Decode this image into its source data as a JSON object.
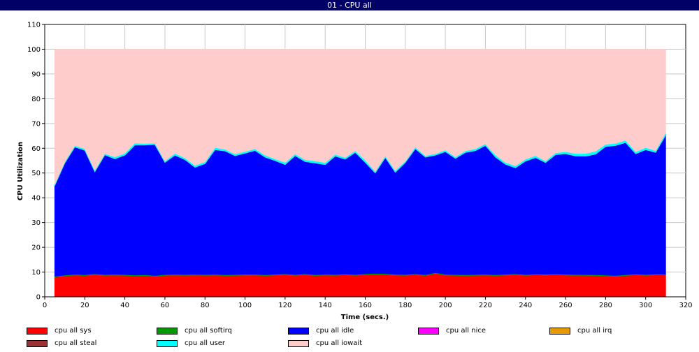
{
  "window": {
    "title": "01 - CPU all"
  },
  "chart_data": {
    "type": "area",
    "stacked": true,
    "title": "",
    "xlabel": "Time (secs.)",
    "ylabel": "CPU Utilization",
    "xlim": [
      0,
      320
    ],
    "ylim": [
      0,
      110
    ],
    "xticks": [
      0,
      20,
      40,
      60,
      80,
      100,
      120,
      140,
      160,
      180,
      200,
      220,
      240,
      260,
      280,
      300,
      320
    ],
    "yticks": [
      0,
      10,
      20,
      30,
      40,
      50,
      60,
      70,
      80,
      90,
      100,
      110
    ],
    "grid": true,
    "legend_position": "bottom",
    "x": [
      5,
      10,
      15,
      20,
      25,
      30,
      35,
      40,
      45,
      50,
      55,
      60,
      65,
      70,
      75,
      80,
      85,
      90,
      95,
      100,
      105,
      110,
      115,
      120,
      125,
      130,
      135,
      140,
      145,
      150,
      155,
      160,
      165,
      170,
      175,
      180,
      185,
      190,
      195,
      200,
      205,
      210,
      215,
      220,
      225,
      230,
      235,
      240,
      245,
      250,
      255,
      260,
      265,
      270,
      275,
      280,
      285,
      290,
      295,
      300,
      305,
      310
    ],
    "series": [
      {
        "name": "cpu all sys",
        "color": "#ff0000",
        "values": [
          8,
          8.5,
          8.8,
          8.6,
          9,
          8.7,
          8.8,
          8.7,
          8.5,
          8.6,
          8.3,
          8.7,
          8.8,
          8.7,
          8.8,
          8.7,
          8.8,
          8.6,
          8.7,
          8.8,
          8.8,
          8.6,
          8.8,
          9,
          8.7,
          9,
          8.6,
          8.8,
          8.7,
          8.9,
          8.7,
          9,
          9.2,
          9.1,
          8.8,
          8.7,
          9,
          8.6,
          9.5,
          8.8,
          8.7,
          8.6,
          8.7,
          8.8,
          8.6,
          8.8,
          9,
          8.7,
          8.9,
          8.8,
          8.9,
          8.8,
          8.7,
          8.7,
          8.6,
          8.5,
          8.3,
          8.6,
          8.9,
          8.7,
          8.9,
          8.8
        ]
      },
      {
        "name": "cpu all softirq",
        "color": "#009900",
        "values": [
          0.3,
          0.3,
          0.3,
          0.3,
          0.3,
          0.3,
          0.3,
          0.3,
          0.3,
          0.3,
          0.3,
          0.3,
          0.3,
          0.3,
          0.3,
          0.3,
          0.3,
          0.3,
          0.3,
          0.3,
          0.3,
          0.3,
          0.3,
          0.3,
          0.3,
          0.3,
          0.3,
          0.3,
          0.3,
          0.3,
          0.3,
          0.3,
          0.3,
          0.3,
          0.3,
          0.3,
          0.3,
          0.3,
          0.3,
          0.3,
          0.3,
          0.3,
          0.3,
          0.3,
          0.3,
          0.3,
          0.3,
          0.3,
          0.3,
          0.3,
          0.3,
          0.3,
          0.3,
          0.3,
          0.3,
          0.3,
          0.3,
          0.3,
          0.3,
          0.3,
          0.3,
          0.3
        ]
      },
      {
        "name": "cpu all idle",
        "color": "#0000ff",
        "values": [
          36.6,
          45.2,
          51.4,
          50.3,
          41.2,
          48.3,
          46.6,
          48.2,
          52.5,
          52.4,
          52.9,
          45.3,
          48.1,
          46.4,
          43.2,
          44.8,
          50.3,
          50,
          48,
          48.9,
          50,
          47.5,
          45.9,
          44.1,
          48,
          45.3,
          45.1,
          44.3,
          47.8,
          46.4,
          49.3,
          45,
          40.5,
          46.8,
          41.2,
          45.2,
          50.5,
          47.5,
          47.4,
          49.5,
          46.9,
          49.4,
          50,
          52,
          47.5,
          44.4,
          42.8,
          45.8,
          47,
          45.1,
          48.2,
          48.7,
          47.9,
          47.8,
          48.7,
          51.9,
          52.5,
          53.4,
          48.6,
          50.4,
          49.1,
          56.2
        ]
      },
      {
        "name": "cpu all nice",
        "color": "#ff00ff",
        "values": [
          0,
          0,
          0,
          0,
          0,
          0,
          0,
          0,
          0,
          0,
          0,
          0,
          0,
          0,
          0,
          0,
          0,
          0,
          0,
          0,
          0,
          0,
          0,
          0,
          0,
          0,
          0,
          0,
          0,
          0,
          0,
          0,
          0,
          0,
          0,
          0,
          0,
          0,
          0,
          0,
          0,
          0,
          0,
          0,
          0,
          0,
          0,
          0,
          0,
          0,
          0,
          0,
          0,
          0,
          0,
          0,
          0,
          0,
          0,
          0,
          0,
          0
        ]
      },
      {
        "name": "cpu all irq",
        "color": "#e69900",
        "values": [
          0,
          0,
          0,
          0,
          0,
          0,
          0,
          0,
          0,
          0,
          0,
          0,
          0,
          0,
          0,
          0,
          0,
          0,
          0,
          0,
          0,
          0,
          0,
          0,
          0,
          0,
          0,
          0,
          0,
          0,
          0,
          0,
          0,
          0,
          0,
          0,
          0,
          0,
          0,
          0,
          0,
          0,
          0,
          0,
          0,
          0,
          0,
          0,
          0,
          0,
          0,
          0,
          0,
          0,
          0,
          0,
          0,
          0,
          0,
          0,
          0,
          0
        ]
      },
      {
        "name": "cpu all steal",
        "color": "#993333",
        "values": [
          0,
          0,
          0,
          0,
          0,
          0,
          0,
          0,
          0,
          0,
          0,
          0,
          0,
          0,
          0,
          0,
          0,
          0,
          0,
          0,
          0,
          0,
          0,
          0,
          0,
          0,
          0,
          0,
          0,
          0,
          0,
          0,
          0,
          0,
          0,
          0,
          0,
          0,
          0,
          0,
          0,
          0,
          0,
          0,
          0,
          0,
          0,
          0,
          0,
          0,
          0,
          0,
          0,
          0,
          0,
          0,
          0,
          0,
          0,
          0,
          0,
          0
        ]
      },
      {
        "name": "cpu all user",
        "color": "#00ffff",
        "values": [
          0.6,
          0.6,
          0.6,
          0.6,
          0.6,
          0.6,
          0.8,
          0.8,
          0.8,
          0.6,
          0.6,
          0.6,
          0.8,
          0.7,
          0.8,
          0.7,
          0.9,
          0.7,
          0.7,
          0.7,
          0.7,
          0.8,
          0.7,
          0.9,
          0.7,
          0.8,
          0.9,
          0.8,
          0.7,
          0.7,
          0.7,
          0.9,
          0.7,
          0.7,
          0.7,
          0.6,
          0.7,
          0.6,
          0.6,
          0.7,
          0.6,
          0.7,
          0.8,
          0.7,
          0.9,
          0.8,
          0.8,
          0.8,
          0.8,
          0.7,
          0.8,
          0.8,
          1,
          1.1,
          1.2,
          0.9,
          0.9,
          0.9,
          0.8,
          0.9,
          0.8,
          0.9
        ]
      },
      {
        "name": "cpu all iowait",
        "color": "#ffcccc",
        "values": [
          54.5,
          45.4,
          38.9,
          40.2,
          48.9,
          42.1,
          43.5,
          42,
          37.9,
          38.1,
          37.9,
          45.1,
          42,
          43.9,
          46.9,
          45.5,
          39.7,
          40.4,
          42.3,
          41.3,
          40.2,
          42.8,
          44.3,
          45.7,
          42.3,
          44.6,
          45.1,
          45.8,
          42.5,
          43.7,
          41,
          44.8,
          49.3,
          43.1,
          49,
          45.2,
          39.5,
          43,
          42.2,
          40.7,
          43.5,
          41,
          40.2,
          38.2,
          42.7,
          45.7,
          47.1,
          44.4,
          43,
          45.1,
          41.8,
          41.4,
          42.1,
          42.1,
          41.2,
          38.4,
          38,
          36.8,
          41.4,
          39.7,
          40.9,
          33.8
        ]
      }
    ]
  }
}
